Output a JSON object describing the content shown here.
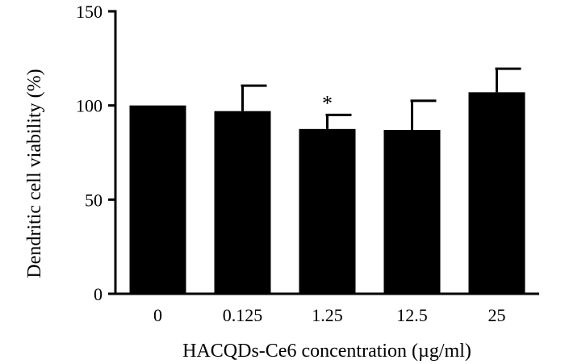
{
  "chart_data": {
    "type": "bar",
    "categories": [
      "0",
      "0.125",
      "1.25",
      "12.5",
      "25"
    ],
    "values": [
      100,
      97,
      87.5,
      87,
      107
    ],
    "errors": [
      0,
      13.5,
      7.5,
      15.5,
      12.5
    ],
    "annotations": [
      "",
      "",
      "*",
      "",
      ""
    ],
    "xlabel": "HACQDs-Ce6 concentration (µg/ml)",
    "ylabel": "Dendritic cell viability (%)",
    "ylim": [
      0,
      150
    ],
    "yticks": [
      "0",
      "50",
      "100",
      "150"
    ],
    "grid": false,
    "colors": {
      "bar": "#000000",
      "axis": "#000000"
    }
  }
}
